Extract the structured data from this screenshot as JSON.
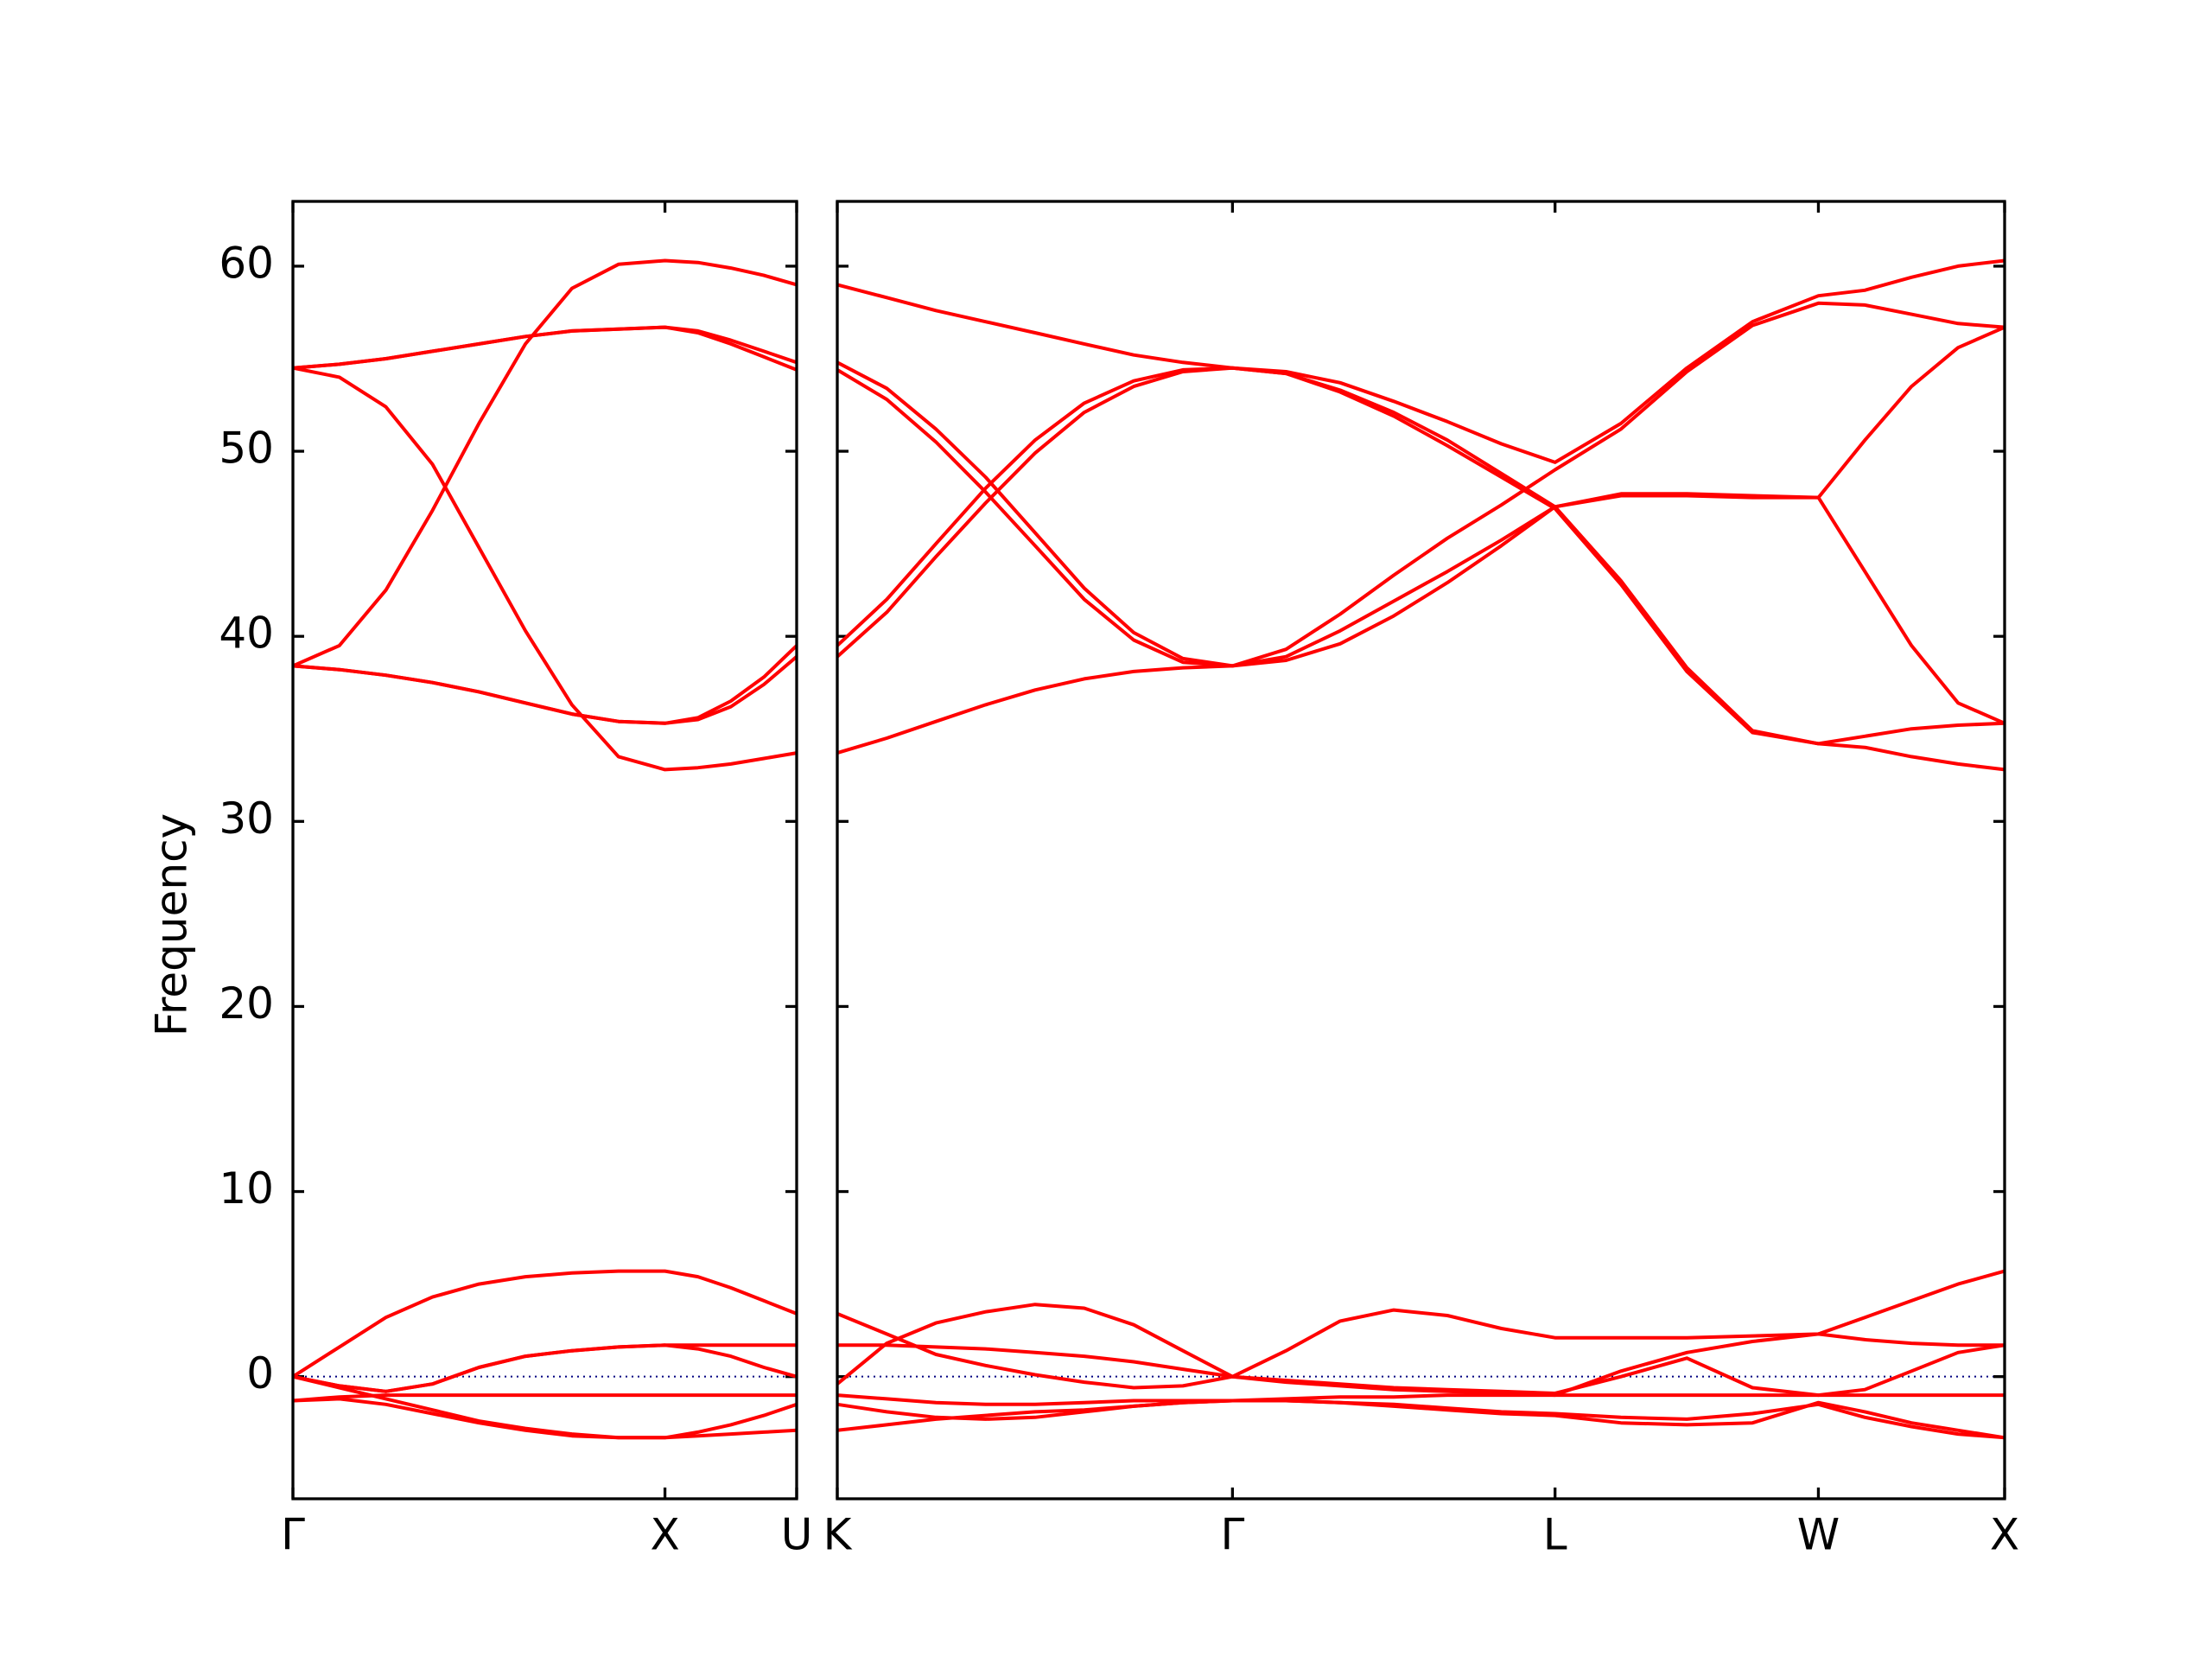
{
  "chart_data": [
    {
      "type": "line",
      "ylabel": "Frequency",
      "color": "#ff0000",
      "x": [
        0,
        0.125,
        0.25,
        0.375,
        0.5,
        0.625,
        0.75,
        0.875,
        1,
        1.0885,
        1.177,
        1.266,
        1.354
      ],
      "xlim": [
        0,
        1.354
      ],
      "xticks": [
        {
          "value": 0,
          "label": "Γ"
        },
        {
          "value": 1,
          "label": "X"
        },
        {
          "value": 1.354,
          "label": "U"
        }
      ],
      "ylim": [
        -6.6,
        63.5
      ],
      "yticks": [
        0,
        10,
        20,
        30,
        40,
        50,
        60
      ],
      "series": [
        {
          "values": [
            54.5,
            54.7,
            55.0,
            55.4,
            55.8,
            56.2,
            56.5,
            56.6,
            56.7,
            56.5,
            56.0,
            55.4,
            54.8
          ]
        },
        {
          "values": [
            54.5,
            54.7,
            55.0,
            55.4,
            55.8,
            56.2,
            56.5,
            56.6,
            56.7,
            56.4,
            55.8,
            55.1,
            54.4
          ]
        },
        {
          "values": [
            54.5,
            54.0,
            52.4,
            49.3,
            44.8,
            40.3,
            36.3,
            33.5,
            32.8,
            32.9,
            33.1,
            33.4,
            33.7
          ]
        },
        {
          "values": [
            38.4,
            39.5,
            42.5,
            46.8,
            51.5,
            55.8,
            58.8,
            60.1,
            60.3,
            60.2,
            59.9,
            59.5,
            59.0
          ]
        },
        {
          "values": [
            38.4,
            38.2,
            37.9,
            37.5,
            37.0,
            36.4,
            35.8,
            35.4,
            35.3,
            35.6,
            36.5,
            37.8,
            39.5
          ]
        },
        {
          "values": [
            38.4,
            38.2,
            37.9,
            37.5,
            37.0,
            36.4,
            35.8,
            35.4,
            35.3,
            35.5,
            36.2,
            37.4,
            38.9
          ]
        },
        {
          "values": [
            0,
            1.6,
            3.2,
            4.3,
            5.0,
            5.4,
            5.6,
            5.7,
            5.7,
            5.4,
            4.8,
            4.1,
            3.4
          ]
        },
        {
          "values": [
            0,
            -0.5,
            -0.8,
            -0.4,
            0.5,
            1.1,
            1.4,
            1.6,
            1.7,
            1.7,
            1.7,
            1.7,
            1.7
          ]
        },
        {
          "values": [
            0,
            -0.5,
            -0.8,
            -0.4,
            0.5,
            1.1,
            1.4,
            1.6,
            1.7,
            1.5,
            1.1,
            0.5,
            0.0
          ]
        },
        {
          "values": [
            -1.3,
            -1.1,
            -1.0,
            -1.0,
            -1.0,
            -1.0,
            -1.0,
            -1.0,
            -1.0,
            -1.0,
            -1.0,
            -1.0,
            -1.0
          ]
        },
        {
          "values": [
            0,
            -0.6,
            -1.2,
            -1.8,
            -2.4,
            -2.8,
            -3.1,
            -3.3,
            -3.3,
            -3.2,
            -3.1,
            -3.0,
            -2.9
          ]
        },
        {
          "values": [
            -1.3,
            -1.2,
            -1.5,
            -2.0,
            -2.5,
            -2.9,
            -3.2,
            -3.3,
            -3.3,
            -3.0,
            -2.6,
            -2.1,
            -1.5
          ]
        }
      ]
    },
    {
      "type": "line",
      "color": "#ff0000",
      "x": [
        1.354,
        1.487,
        1.619,
        1.752,
        1.885,
        2.017,
        2.15,
        2.282,
        2.415,
        2.559,
        2.704,
        2.848,
        2.992,
        3.137,
        3.281,
        3.458,
        3.635,
        3.811,
        3.988,
        4.113,
        4.238,
        4.363,
        4.488
      ],
      "xlim": [
        1.354,
        4.488
      ],
      "xticks": [
        {
          "value": 1.354,
          "label": "K"
        },
        {
          "value": 2.415,
          "label": "Γ"
        },
        {
          "value": 3.281,
          "label": "L"
        },
        {
          "value": 3.988,
          "label": "W"
        },
        {
          "value": 4.488,
          "label": "X"
        }
      ],
      "ylim": [
        -6.6,
        63.5
      ],
      "yticks": [
        0,
        10,
        20,
        30,
        40,
        50,
        60
      ],
      "series": [
        {
          "values": [
            59.0,
            58.3,
            57.6,
            57.0,
            56.4,
            55.8,
            55.2,
            54.8,
            54.5,
            54.3,
            53.7,
            52.7,
            51.6,
            50.4,
            49.4,
            51.5,
            54.5,
            57.0,
            58.4,
            58.7,
            59.4,
            60.0,
            60.3
          ]
        },
        {
          "values": [
            54.8,
            53.4,
            51.2,
            48.6,
            45.6,
            42.6,
            40.2,
            38.8,
            38.4,
            39.3,
            41.2,
            43.3,
            45.3,
            47.1,
            49.0,
            51.2,
            54.3,
            56.8,
            58.0,
            57.9,
            57.4,
            56.9,
            56.7
          ]
        },
        {
          "values": [
            54.4,
            52.8,
            50.5,
            47.8,
            44.9,
            42.0,
            39.8,
            38.6,
            38.4,
            38.9,
            40.3,
            41.9,
            43.5,
            45.2,
            47.0,
            47.6,
            47.6,
            47.5,
            47.5,
            50.6,
            53.5,
            55.6,
            56.7
          ]
        },
        {
          "values": [
            39.5,
            42.0,
            45.0,
            48.0,
            50.6,
            52.6,
            53.8,
            54.4,
            54.5,
            54.2,
            53.3,
            52.1,
            50.6,
            48.8,
            47.0,
            43.0,
            38.3,
            34.9,
            34.2,
            34.6,
            35.0,
            35.2,
            35.3
          ]
        },
        {
          "values": [
            38.9,
            41.3,
            44.3,
            47.2,
            49.9,
            52.1,
            53.5,
            54.3,
            54.5,
            54.2,
            53.2,
            51.9,
            50.3,
            48.6,
            46.9,
            42.8,
            38.1,
            34.8,
            34.2,
            34.0,
            33.5,
            33.1,
            32.8
          ]
        },
        {
          "values": [
            33.7,
            34.5,
            35.4,
            36.3,
            37.1,
            37.7,
            38.1,
            38.3,
            38.4,
            38.7,
            39.6,
            41.1,
            42.9,
            44.9,
            47.0,
            47.7,
            47.7,
            47.6,
            47.5,
            43.5,
            39.5,
            36.4,
            35.3
          ]
        },
        {
          "values": [
            3.4,
            2.3,
            1.2,
            0.6,
            0.1,
            -0.3,
            -0.6,
            -0.5,
            0,
            -0.3,
            -0.5,
            -0.7,
            -0.8,
            -0.9,
            -1.0,
            -1.0,
            -1.0,
            -1.0,
            -1.0,
            -1.0,
            -1.0,
            -1.0,
            -1.0
          ]
        },
        {
          "values": [
            1.7,
            1.7,
            1.6,
            1.5,
            1.3,
            1.1,
            0.8,
            0.4,
            0,
            -0.2,
            -0.4,
            -0.6,
            -0.7,
            -0.8,
            -0.9,
            0.0,
            1.0,
            -0.6,
            -1.0,
            -0.7,
            0.3,
            1.3,
            1.7
          ]
        },
        {
          "values": [
            -0.4,
            1.8,
            2.9,
            3.5,
            3.9,
            3.7,
            2.8,
            1.4,
            0,
            1.4,
            3.0,
            3.6,
            3.3,
            2.6,
            2.1,
            2.1,
            2.1,
            2.2,
            2.3,
            3.2,
            4.1,
            5.0,
            5.7
          ]
        },
        {
          "values": [
            -1.0,
            -1.2,
            -1.4,
            -1.5,
            -1.5,
            -1.4,
            -1.3,
            -1.3,
            -1.3,
            -1.2,
            -1.1,
            -1.1,
            -1.0,
            -1.0,
            -1.0,
            0.3,
            1.3,
            1.9,
            2.3,
            2.0,
            1.8,
            1.7,
            1.7
          ]
        },
        {
          "values": [
            -2.9,
            -2.6,
            -2.3,
            -2.1,
            -1.9,
            -1.8,
            -1.6,
            -1.4,
            -1.3,
            -1.3,
            -1.4,
            -1.5,
            -1.7,
            -1.9,
            -2.0,
            -2.2,
            -2.3,
            -2.0,
            -1.5,
            -2.2,
            -2.7,
            -3.1,
            -3.3
          ]
        },
        {
          "values": [
            -1.5,
            -1.9,
            -2.2,
            -2.3,
            -2.2,
            -1.9,
            -1.6,
            -1.4,
            -1.3,
            -1.3,
            -1.4,
            -1.6,
            -1.8,
            -2.0,
            -2.1,
            -2.5,
            -2.6,
            -2.5,
            -1.4,
            -1.9,
            -2.5,
            -2.9,
            -3.3
          ]
        }
      ]
    }
  ]
}
